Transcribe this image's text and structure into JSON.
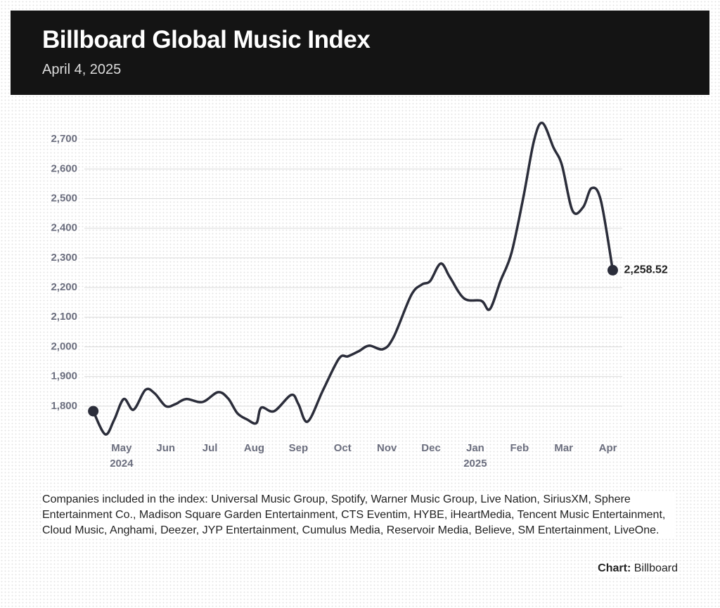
{
  "chart_data": {
    "type": "line",
    "title": "Billboard Global Music Index",
    "subtitle": "April 4, 2025",
    "x": [
      4.36,
      4.63,
      4.83,
      5.05,
      5.27,
      5.54,
      5.75,
      6.0,
      6.22,
      6.46,
      6.83,
      7.18,
      7.41,
      7.62,
      7.84,
      8.05,
      8.16,
      8.45,
      8.84,
      9.0,
      9.21,
      9.56,
      9.92,
      10.12,
      10.36,
      10.6,
      10.91,
      11.15,
      11.55,
      11.79,
      11.98,
      12.22,
      12.43,
      12.75,
      13.14,
      13.33,
      13.57,
      13.82,
      14.09,
      14.33,
      14.52,
      14.77,
      14.96,
      15.2,
      15.44,
      15.63,
      15.84,
      16.11
    ],
    "values": [
      1783,
      1705,
      1753,
      1824,
      1788,
      1855,
      1843,
      1800,
      1807,
      1824,
      1814,
      1847,
      1826,
      1776,
      1755,
      1743,
      1795,
      1783,
      1838,
      1807,
      1748,
      1855,
      1961,
      1968,
      1985,
      2004,
      1992,
      2032,
      2174,
      2210,
      2222,
      2281,
      2234,
      2163,
      2155,
      2127,
      2222,
      2317,
      2506,
      2696,
      2755,
      2672,
      2613,
      2459,
      2471,
      2535,
      2494,
      2258.52
    ],
    "end_label": "2,258.52",
    "color": "#2b2d3a",
    "xlim": [
      4,
      16.5
    ],
    "xticks": [
      {
        "value": 5,
        "label": "May"
      },
      {
        "value": 6,
        "label": "Jun"
      },
      {
        "value": 7,
        "label": "Jul"
      },
      {
        "value": 8,
        "label": "Aug"
      },
      {
        "value": 9,
        "label": "Sep"
      },
      {
        "value": 10,
        "label": "Oct"
      },
      {
        "value": 11,
        "label": "Nov"
      },
      {
        "value": 12,
        "label": "Dec"
      },
      {
        "value": 13,
        "label": "Jan"
      },
      {
        "value": 14,
        "label": "Feb"
      },
      {
        "value": 15,
        "label": "Mar"
      },
      {
        "value": 16,
        "label": "Apr"
      }
    ],
    "year_labels": [
      {
        "value": 5,
        "label": "2024"
      },
      {
        "value": 13,
        "label": "2025"
      }
    ],
    "ylim": [
      1700,
      2800
    ],
    "yticks": [
      {
        "value": 1800,
        "label": "1,800"
      },
      {
        "value": 1900,
        "label": "1,900"
      },
      {
        "value": 2000,
        "label": "2,000"
      },
      {
        "value": 2100,
        "label": "2,100"
      },
      {
        "value": 2200,
        "label": "2,200"
      },
      {
        "value": 2300,
        "label": "2,300"
      },
      {
        "value": 2400,
        "label": "2,400"
      },
      {
        "value": 2500,
        "label": "2,500"
      },
      {
        "value": 2600,
        "label": "2,600"
      },
      {
        "value": 2700,
        "label": "2,700"
      }
    ],
    "grid": true,
    "note": "Companies included in the index: Universal Music Group, Spotify, Warner Music Group, Live Nation, SiriusXM, Sphere Entertainment Co., Madison Square Garden Entertainment, CTS Eventim, HYBE, iHeartMedia, Tencent Music Entertainment, Cloud Music, Anghami, Deezer, JYP Entertainment, Cumulus Media, Reservoir Media, Believe, SM Entertainment, LiveOne.",
    "source_label": "Chart:",
    "source": "Billboard"
  }
}
